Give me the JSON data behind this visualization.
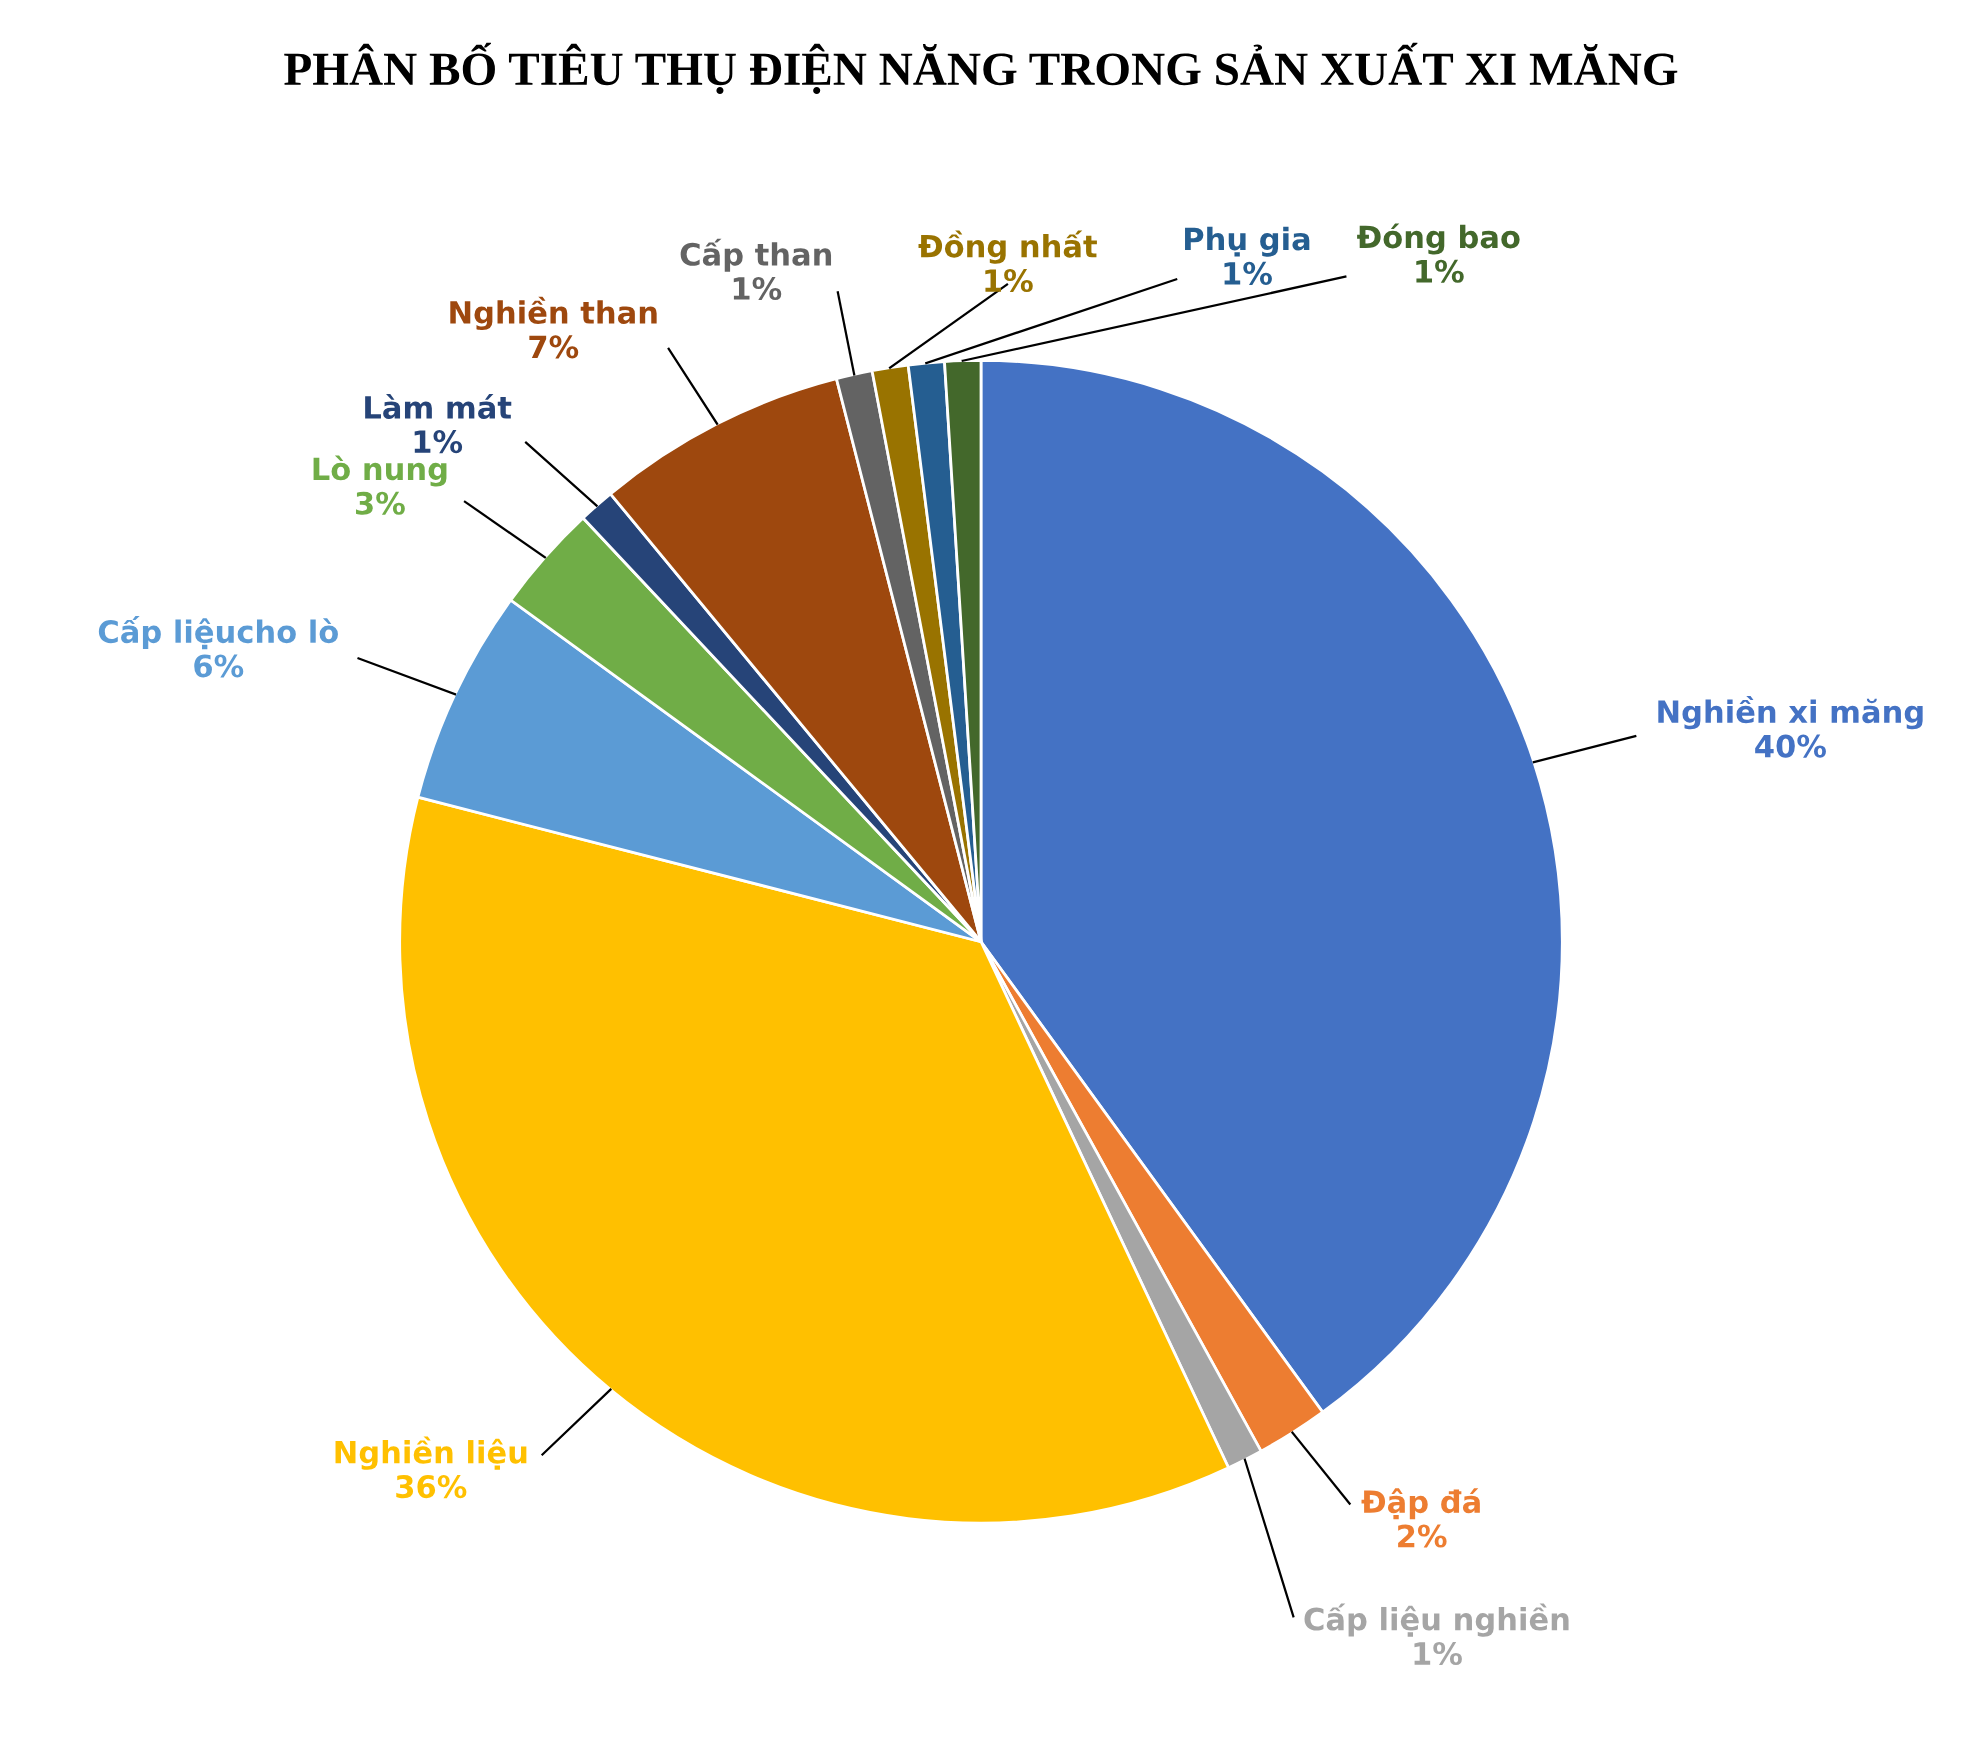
{
  "chart_data": {
    "type": "pie",
    "title": "PHÂN BỐ TIÊU THỤ ĐIỆN NĂNG TRONG SẢN XUẤT XI MĂNG",
    "categories": [
      "Nghiền xi măng",
      "Đập đá",
      "Cấp liệu nghiền",
      "Nghiền liệu",
      "Cấp liệucho lò",
      "Lò nung",
      "Làm mát",
      "Nghiền than",
      "Cấp than",
      "Đồng nhất",
      "Phụ gia",
      "Đóng bao"
    ],
    "values": [
      40,
      2,
      1,
      36,
      6,
      3,
      1,
      7,
      1,
      1,
      1,
      1
    ],
    "value_labels": [
      "40%",
      "2%",
      "1%",
      "36%",
      "6%",
      "3%",
      "1%",
      "7%",
      "1%",
      "1%",
      "1%",
      "1%"
    ],
    "colors": [
      "#4472c4",
      "#ed7d31",
      "#a5a5a5",
      "#ffc000",
      "#5b9bd5",
      "#70ad47",
      "#264478",
      "#9e480e",
      "#636363",
      "#997300",
      "#255e91",
      "#43682b"
    ],
    "legend": false
  }
}
